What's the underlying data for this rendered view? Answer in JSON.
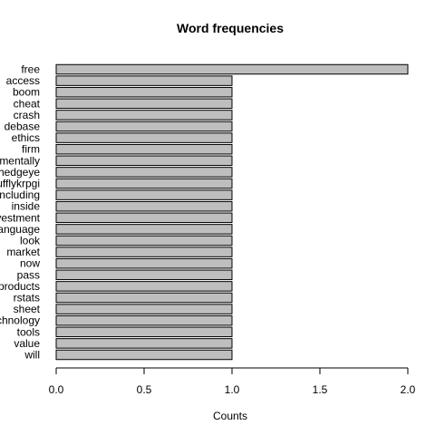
{
  "chart_data": {
    "type": "bar",
    "orientation": "horizontal",
    "title": "Word frequencies",
    "xlabel": "Counts",
    "ylabel": "",
    "xlim": [
      0,
      2
    ],
    "x_ticks": [
      "0.0",
      "0.5",
      "1.0",
      "1.5",
      "2.0"
    ],
    "x_tick_values": [
      0,
      0.5,
      1.0,
      1.5,
      2.0
    ],
    "categories": [
      "free",
      "access",
      "boom",
      "cheat",
      "crash",
      "debase",
      "ethics",
      "firm",
      "mentally",
      "hedgeye",
      "ufflykrpgi",
      "including",
      "inside",
      "vestment",
      "language",
      "look",
      "market",
      "now",
      "pass",
      "products",
      "rstats",
      "sheet",
      "chnology",
      "tools",
      "value",
      "will"
    ],
    "values": [
      2,
      1,
      1,
      1,
      1,
      1,
      1,
      1,
      1,
      1,
      1,
      1,
      1,
      1,
      1,
      1,
      1,
      1,
      1,
      1,
      1,
      1,
      1,
      1,
      1,
      1
    ],
    "bar_color": "#bebebe",
    "grid": false,
    "legend": "none"
  }
}
